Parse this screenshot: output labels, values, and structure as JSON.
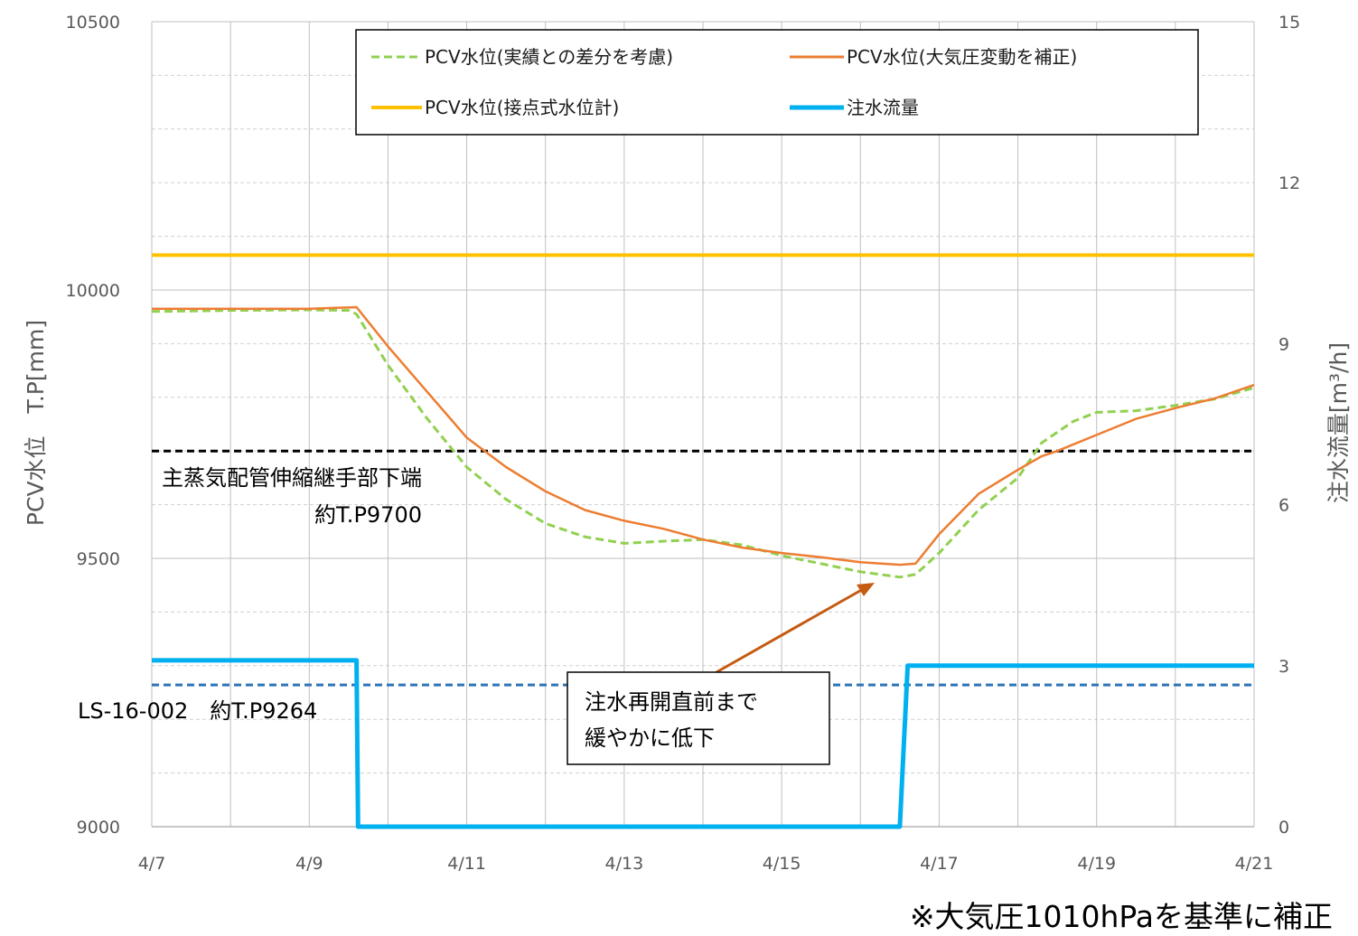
{
  "chart_data": {
    "type": "line",
    "y_left": {
      "label": "PCV水位　T.P[mm]",
      "range": [
        9000,
        10500
      ],
      "ticks": [
        "10500",
        "10000",
        "9500",
        "9000"
      ]
    },
    "y_right": {
      "label": "注水流量[m³/h]",
      "range": [
        0,
        15
      ],
      "ticks": [
        "15",
        "12",
        "9",
        "6",
        "3",
        "0"
      ]
    },
    "x_ticks": [
      "4/7",
      "4/9",
      "4/11",
      "4/13",
      "4/15",
      "4/17",
      "4/19",
      "4/21"
    ],
    "x_range_days": [
      0,
      14
    ],
    "grid": true,
    "legend_position": "top-center",
    "series": [
      {
        "name": "PCV水位(実績との差分を考慮)",
        "axis": "left",
        "color": "#92D050",
        "style": "dashed",
        "points": [
          [
            0,
            9960
          ],
          [
            1,
            9962
          ],
          [
            2,
            9963
          ],
          [
            2.5,
            9962
          ],
          [
            2.6,
            9955
          ],
          [
            3,
            9860
          ],
          [
            3.5,
            9760
          ],
          [
            4,
            9670
          ],
          [
            4.5,
            9610
          ],
          [
            5,
            9565
          ],
          [
            5.5,
            9540
          ],
          [
            6,
            9528
          ],
          [
            6.5,
            9532
          ],
          [
            7,
            9535
          ],
          [
            7.5,
            9525
          ],
          [
            8,
            9505
          ],
          [
            8.5,
            9490
          ],
          [
            9,
            9475
          ],
          [
            9.5,
            9465
          ],
          [
            9.7,
            9470
          ],
          [
            10,
            9510
          ],
          [
            10.5,
            9590
          ],
          [
            11,
            9650
          ],
          [
            11.3,
            9715
          ],
          [
            11.7,
            9755
          ],
          [
            12,
            9772
          ],
          [
            12.5,
            9775
          ],
          [
            13,
            9785
          ],
          [
            13.5,
            9797
          ],
          [
            14,
            9818
          ]
        ]
      },
      {
        "name": "PCV水位(大気圧変動を補正)",
        "axis": "left",
        "color": "#ED7D31",
        "style": "solid",
        "points": [
          [
            0,
            9965
          ],
          [
            1,
            9965
          ],
          [
            2,
            9965
          ],
          [
            2.6,
            9968
          ],
          [
            3,
            9895
          ],
          [
            3.5,
            9810
          ],
          [
            4,
            9725
          ],
          [
            4.5,
            9670
          ],
          [
            5,
            9625
          ],
          [
            5.5,
            9590
          ],
          [
            6,
            9570
          ],
          [
            6.5,
            9555
          ],
          [
            7,
            9535
          ],
          [
            7.5,
            9520
          ],
          [
            8,
            9510
          ],
          [
            8.5,
            9502
          ],
          [
            9,
            9493
          ],
          [
            9.5,
            9488
          ],
          [
            9.7,
            9490
          ],
          [
            10,
            9545
          ],
          [
            10.5,
            9620
          ],
          [
            11,
            9665
          ],
          [
            11.3,
            9690
          ],
          [
            11.5,
            9700
          ],
          [
            12,
            9730
          ],
          [
            12.5,
            9760
          ],
          [
            13,
            9780
          ],
          [
            13.5,
            9798
          ],
          [
            14,
            9823
          ]
        ]
      },
      {
        "name": "PCV水位(接点式水位計)",
        "axis": "left",
        "color": "#FFC000",
        "style": "solid",
        "points": [
          [
            0,
            10065
          ],
          [
            14,
            10065
          ]
        ]
      },
      {
        "name": "注水流量",
        "axis": "right",
        "color": "#00B0F0",
        "style": "solid",
        "points": [
          [
            0,
            3.1
          ],
          [
            2.6,
            3.1
          ],
          [
            2.62,
            0
          ],
          [
            9.5,
            0
          ],
          [
            9.6,
            3.0
          ],
          [
            14,
            3.0
          ]
        ]
      }
    ],
    "reference_lines": [
      {
        "axis": "left",
        "value": 9700,
        "color": "#000000",
        "style": "dashed",
        "label_line1": "主蒸気配管伸縮継手部下端",
        "label_line2": "約T.P9700"
      },
      {
        "axis": "left",
        "value": 9264,
        "color": "#2E75B6",
        "style": "dashed",
        "label_line1": "LS-16-002　約T.P9264"
      }
    ],
    "callout": {
      "line1": "注水再開直前まで",
      "line2": "緩やかに低下",
      "color": "#C55A11"
    }
  },
  "footnote": "※大気圧1010hPaを基準に補正"
}
